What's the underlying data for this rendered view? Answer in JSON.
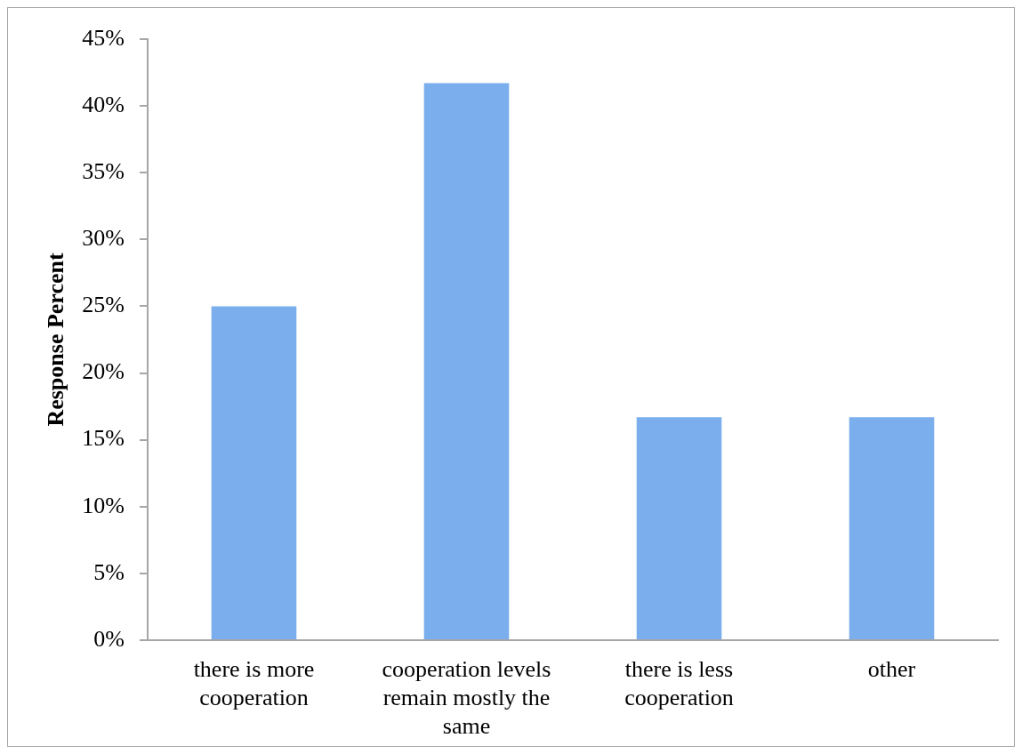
{
  "chart_data": {
    "type": "bar",
    "ylabel": "Response Percent",
    "categories": [
      "there is more cooperation",
      "cooperation levels remain mostly the same",
      "there is less cooperation",
      "other"
    ],
    "values": [
      25,
      41.7,
      16.7,
      16.7
    ],
    "color": "#7aaeec",
    "ylim": [
      0,
      45
    ],
    "yticks": [
      {
        "value": 0,
        "label": "0%"
      },
      {
        "value": 5,
        "label": "5%"
      },
      {
        "value": 10,
        "label": "10%"
      },
      {
        "value": 15,
        "label": "15%"
      },
      {
        "value": 20,
        "label": "20%"
      },
      {
        "value": 25,
        "label": "25%"
      },
      {
        "value": 30,
        "label": "30%"
      },
      {
        "value": 35,
        "label": "35%"
      },
      {
        "value": 40,
        "label": "40%"
      },
      {
        "value": 45,
        "label": "45%"
      }
    ]
  }
}
